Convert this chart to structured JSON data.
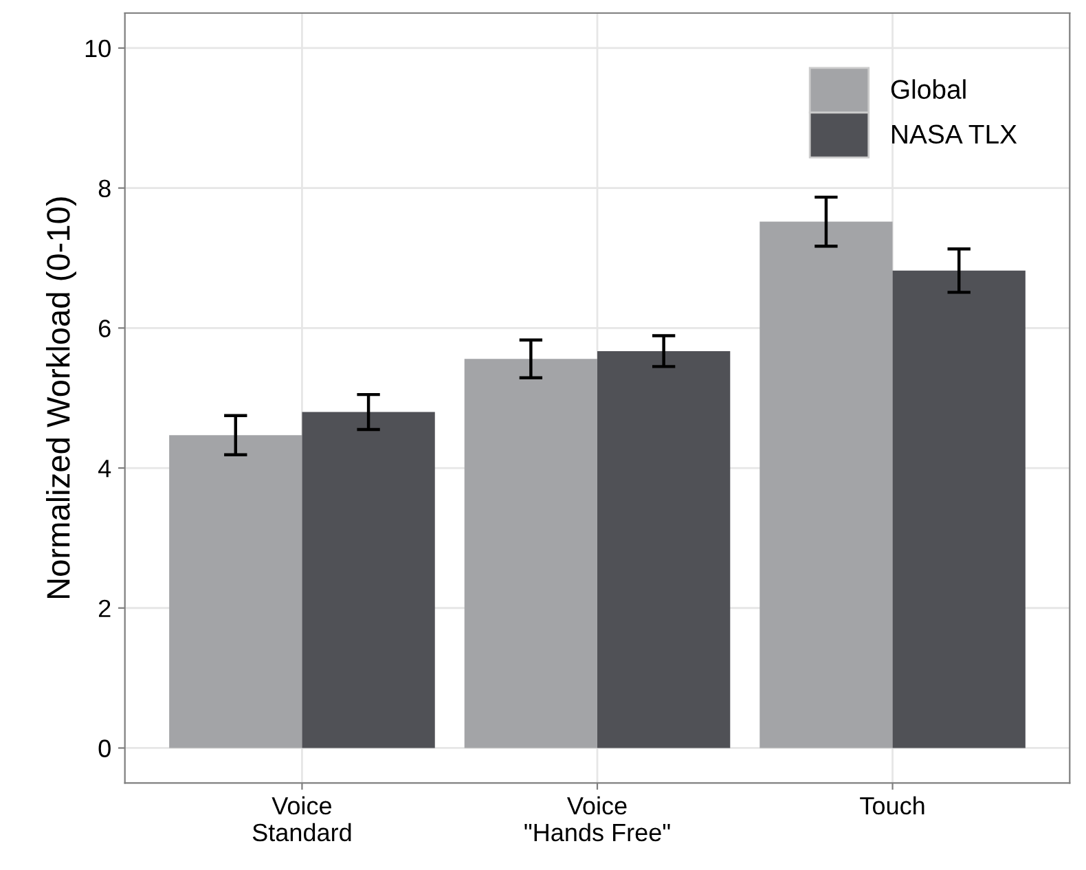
{
  "chart_data": {
    "type": "bar",
    "ylabel": "Normalized Workload (0-10)",
    "categories": [
      "Voice\nStandard",
      "Voice\n\"Hands Free\"",
      "Touch"
    ],
    "series": [
      {
        "name": "Global",
        "color": "#a3a4a7",
        "values": [
          4.47,
          5.56,
          7.52
        ],
        "errors": [
          0.28,
          0.27,
          0.35
        ]
      },
      {
        "name": "NASA TLX",
        "color": "#505156",
        "values": [
          4.8,
          5.67,
          6.82
        ],
        "errors": [
          0.25,
          0.22,
          0.31
        ]
      }
    ],
    "ylim": [
      -0.5,
      10.5
    ],
    "yticks": [
      0,
      2,
      4,
      6,
      8,
      10
    ],
    "grid": true,
    "legend": "top right"
  }
}
